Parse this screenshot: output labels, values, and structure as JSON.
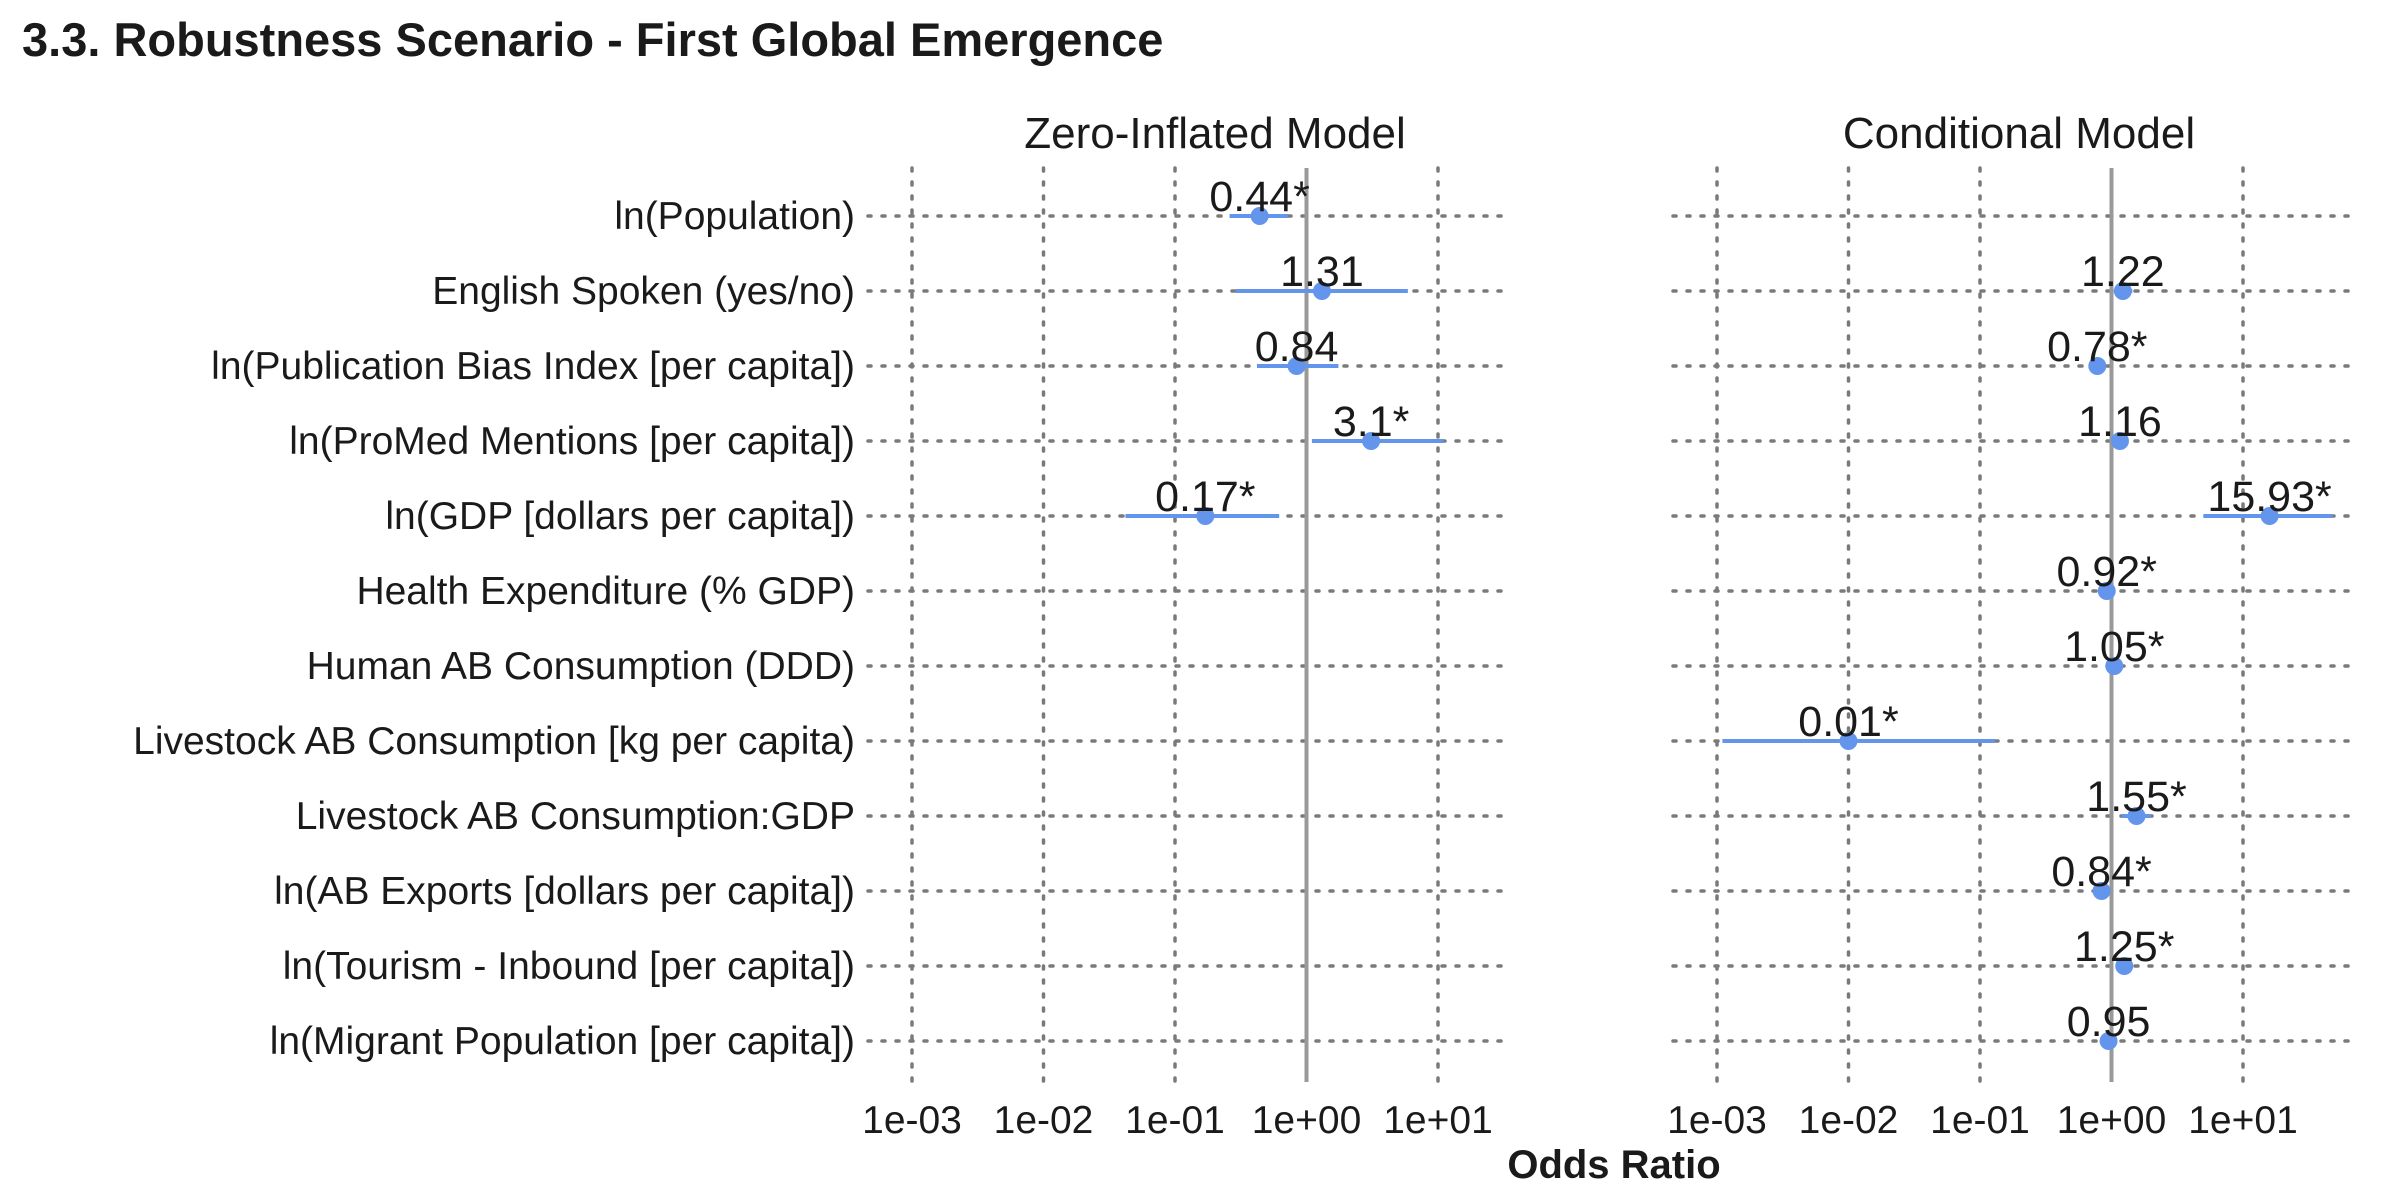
{
  "chart_data": {
    "type": "forest",
    "title": "3.3. Robustness Scenario - First Global Emergence",
    "xlabel": "Odds Ratio",
    "xscale": "log",
    "xlim": [
      0.0005,
      80
    ],
    "x_ticks": [
      0.001,
      0.01,
      0.1,
      1,
      10
    ],
    "x_tick_labels": [
      "1e-03",
      "1e-02",
      "1e-01",
      "1e+00",
      "1e+01"
    ],
    "reference_line": 1,
    "grid": "dotted",
    "point_color": "#6495ED",
    "reference_line_color": "#999999",
    "row_labels": [
      "ln(Population)",
      "English Spoken (yes/no)",
      "ln(Publication Bias Index [per capita])",
      "ln(ProMed Mentions [per capita])",
      "ln(GDP [dollars per capita])",
      "Health Expenditure (% GDP)",
      "Human AB Consumption (DDD)",
      "Livestock AB Consumption [kg per capita)",
      "Livestock AB Consumption:GDP",
      "ln(AB Exports [dollars per capita])",
      "ln(Tourism - Inbound [per capita])",
      "ln(Migrant Population [per capita])"
    ],
    "panels": [
      {
        "name": "Zero-Inflated Model",
        "estimates": [
          {
            "row": 0,
            "or": 0.44,
            "lo": 0.26,
            "hi": 0.72,
            "label": "0.44*"
          },
          {
            "row": 1,
            "or": 1.31,
            "lo": 0.29,
            "hi": 5.9,
            "label": "1.31"
          },
          {
            "row": 2,
            "or": 0.84,
            "lo": 0.42,
            "hi": 1.75,
            "label": "0.84"
          },
          {
            "row": 3,
            "or": 3.1,
            "lo": 1.1,
            "hi": 11.0,
            "label": "3.1*"
          },
          {
            "row": 4,
            "or": 0.17,
            "lo": 0.042,
            "hi": 0.62,
            "label": "0.17*"
          }
        ]
      },
      {
        "name": "Conditional Model",
        "estimates": [
          {
            "row": 1,
            "or": 1.22,
            "lo": 1.04,
            "hi": 1.44,
            "label": "1.22"
          },
          {
            "row": 2,
            "or": 0.78,
            "lo": 0.69,
            "hi": 0.88,
            "label": "0.78*"
          },
          {
            "row": 3,
            "or": 1.16,
            "lo": 1.0,
            "hi": 1.32,
            "label": "1.16"
          },
          {
            "row": 4,
            "or": 15.93,
            "lo": 5.0,
            "hi": 48.0,
            "label": "15.93*"
          },
          {
            "row": 5,
            "or": 0.92,
            "lo": 0.86,
            "hi": 0.98,
            "label": "0.92*"
          },
          {
            "row": 6,
            "or": 1.05,
            "lo": 1.01,
            "hi": 1.09,
            "label": "1.05*"
          },
          {
            "row": 7,
            "or": 0.01,
            "lo": 0.0011,
            "hi": 0.13,
            "label": "0.01*"
          },
          {
            "row": 8,
            "or": 1.55,
            "lo": 1.2,
            "hi": 2.0,
            "label": "1.55*"
          },
          {
            "row": 9,
            "or": 0.84,
            "lo": 0.77,
            "hi": 0.92,
            "label": "0.84*"
          },
          {
            "row": 10,
            "or": 1.25,
            "lo": 1.1,
            "hi": 1.42,
            "label": "1.25*"
          },
          {
            "row": 11,
            "or": 0.95,
            "lo": 0.85,
            "hi": 1.05,
            "label": "0.95"
          }
        ]
      }
    ]
  }
}
